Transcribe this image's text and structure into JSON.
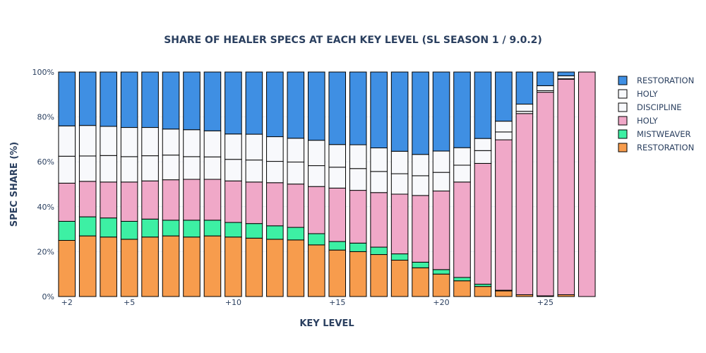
{
  "chart_data": {
    "type": "bar",
    "stacked": true,
    "title": "SHARE OF HEALER SPECS AT EACH KEY LEVEL (SL SEASON 1 / 9.0.2)",
    "xlabel": "KEY LEVEL",
    "ylabel": "SPEC SHARE (%)",
    "ylim": [
      0,
      100
    ],
    "yticks": [
      0,
      20,
      40,
      60,
      80,
      100
    ],
    "ytick_labels": [
      "0%",
      "20%",
      "40%",
      "60%",
      "80%",
      "100%"
    ],
    "xlim": [
      1.5,
      27.5
    ],
    "xticks": [
      2,
      5,
      10,
      15,
      20,
      25
    ],
    "xtick_labels": [
      "+2",
      "+5",
      "+10",
      "+15",
      "+20",
      "+25"
    ],
    "x": [
      2,
      3,
      4,
      5,
      6,
      7,
      8,
      9,
      10,
      11,
      12,
      13,
      14,
      15,
      16,
      17,
      18,
      19,
      20,
      21,
      22,
      23,
      24,
      25,
      26,
      27
    ],
    "grid": true,
    "legend_position": "right",
    "series": [
      {
        "name": "RESTORATION",
        "color": "#f79c4d",
        "values": [
          25,
          27,
          26.5,
          25.5,
          26.5,
          27,
          26.5,
          27,
          26.5,
          26,
          25.5,
          25.2,
          23,
          20.7,
          20,
          18.7,
          16.2,
          12.8,
          10,
          7,
          4.5,
          2.5,
          0.8,
          0.3,
          0.8,
          0
        ]
      },
      {
        "name": "MISTWEAVER",
        "color": "#3df0a4",
        "values": [
          8.5,
          8.5,
          8.5,
          8,
          8,
          7,
          7.5,
          7,
          6.5,
          6.5,
          6,
          5.6,
          5,
          3.8,
          3.8,
          3.3,
          2.8,
          2.5,
          2,
          1.5,
          1,
          0.3,
          0,
          0,
          0,
          0
        ]
      },
      {
        "name": "HOLY",
        "color": "#f0a8c8",
        "values": [
          17,
          15.8,
          16,
          17.5,
          17,
          18,
          18.2,
          18.2,
          18.5,
          18.5,
          19.2,
          19.3,
          21,
          23.8,
          23.5,
          24.3,
          26.6,
          29.7,
          35,
          42.5,
          53.8,
          67,
          80.7,
          90.7,
          96,
          100
        ]
      },
      {
        "name": "DISCIPLINE",
        "color": "#f8f9fc",
        "values": [
          12,
          11.3,
          11.8,
          11.3,
          11.2,
          11,
          10.1,
          10,
          9.6,
          9.8,
          9.5,
          9.8,
          9.3,
          9.3,
          9.7,
          9.4,
          9.1,
          8.8,
          8.3,
          7.5,
          5.7,
          3.5,
          1,
          0.7,
          0.2,
          0
        ]
      },
      {
        "name": "HOLY",
        "color": "#f8f9fc",
        "values": [
          13.5,
          13.6,
          13,
          13,
          12.6,
          11.6,
          12,
          11.6,
          11.3,
          11.5,
          11,
          10.6,
          11.3,
          10.1,
          10.6,
          10.5,
          10,
          9.5,
          9.5,
          7.8,
          5.4,
          4.8,
          3.2,
          2.2,
          1.3,
          0
        ]
      },
      {
        "name": "RESTORATION",
        "color": "#3f8fe3",
        "values": [
          24,
          23.8,
          24.2,
          24.7,
          24.7,
          25.4,
          25.7,
          26.2,
          27.6,
          27.7,
          28.8,
          29.5,
          30.4,
          32.3,
          32.4,
          33.8,
          35.3,
          36.7,
          35.2,
          33.7,
          29.6,
          21.9,
          14.3,
          6.1,
          1.7,
          0
        ]
      }
    ],
    "legend_order": [
      5,
      4,
      3,
      2,
      1,
      0
    ]
  }
}
